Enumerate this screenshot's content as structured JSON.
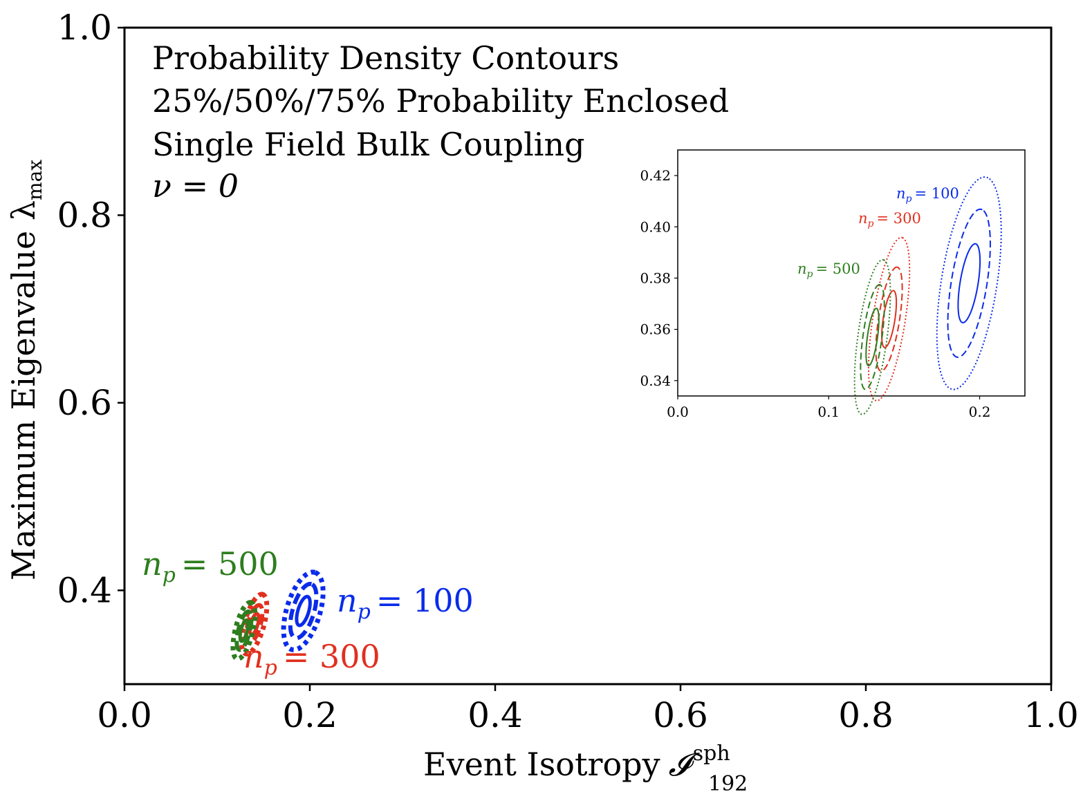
{
  "chart_data": {
    "type": "contour",
    "title_lines": [
      "Probability Density Contours",
      "25%/50%/75% Probability Enclosed",
      "Single Field Bulk Coupling",
      "ν = 0"
    ],
    "xlabel": "Event Isotropy",
    "xlabel_symbol": "𝓘",
    "xlabel_superscript": "sph",
    "xlabel_subscript": "192",
    "ylabel": "Maximum Eigenvalue λ",
    "ylabel_subscript": "max",
    "xlim": [
      0.0,
      1.0
    ],
    "ylim": [
      0.3,
      1.0
    ],
    "xticks": [
      "0.0",
      "0.2",
      "0.4",
      "0.6",
      "0.8",
      "1.0"
    ],
    "yticks": [
      "0.4",
      "0.6",
      "0.8",
      "1.0"
    ],
    "contour_levels": [
      "25%",
      "50%",
      "75%"
    ],
    "series": [
      {
        "name": "n_p = 100",
        "label": "n",
        "label_sub": "p",
        "label_value": "= 100",
        "color": "#0a2bea",
        "center": [
          0.193,
          0.378
        ],
        "angle_deg": 73,
        "semi_major": [
          0.016,
          0.03,
          0.043
        ],
        "semi_minor": [
          0.0058,
          0.0115,
          0.018
        ]
      },
      {
        "name": "n_p = 300",
        "label": "n",
        "label_sub": "p",
        "label_value": "= 300",
        "color": "#e0301e",
        "center": [
          0.14,
          0.364
        ],
        "angle_deg": 74,
        "semi_major": [
          0.0115,
          0.021,
          0.033
        ],
        "semi_minor": [
          0.0038,
          0.0068,
          0.0105
        ]
      },
      {
        "name": "n_p = 500",
        "label": "n",
        "label_sub": "p",
        "label_value": "= 500",
        "color": "#2e7d1e",
        "center": [
          0.129,
          0.357
        ],
        "angle_deg": 76,
        "semi_major": [
          0.0115,
          0.021,
          0.031
        ],
        "semi_minor": [
          0.0033,
          0.0062,
          0.0095
        ]
      }
    ],
    "inset": {
      "xlim": [
        0.0,
        0.23
      ],
      "ylim": [
        0.334,
        0.43
      ],
      "xticks": [
        "0.0",
        "0.1",
        "0.2"
      ],
      "yticks": [
        "0.34",
        "0.36",
        "0.38",
        "0.40",
        "0.42"
      ]
    }
  }
}
